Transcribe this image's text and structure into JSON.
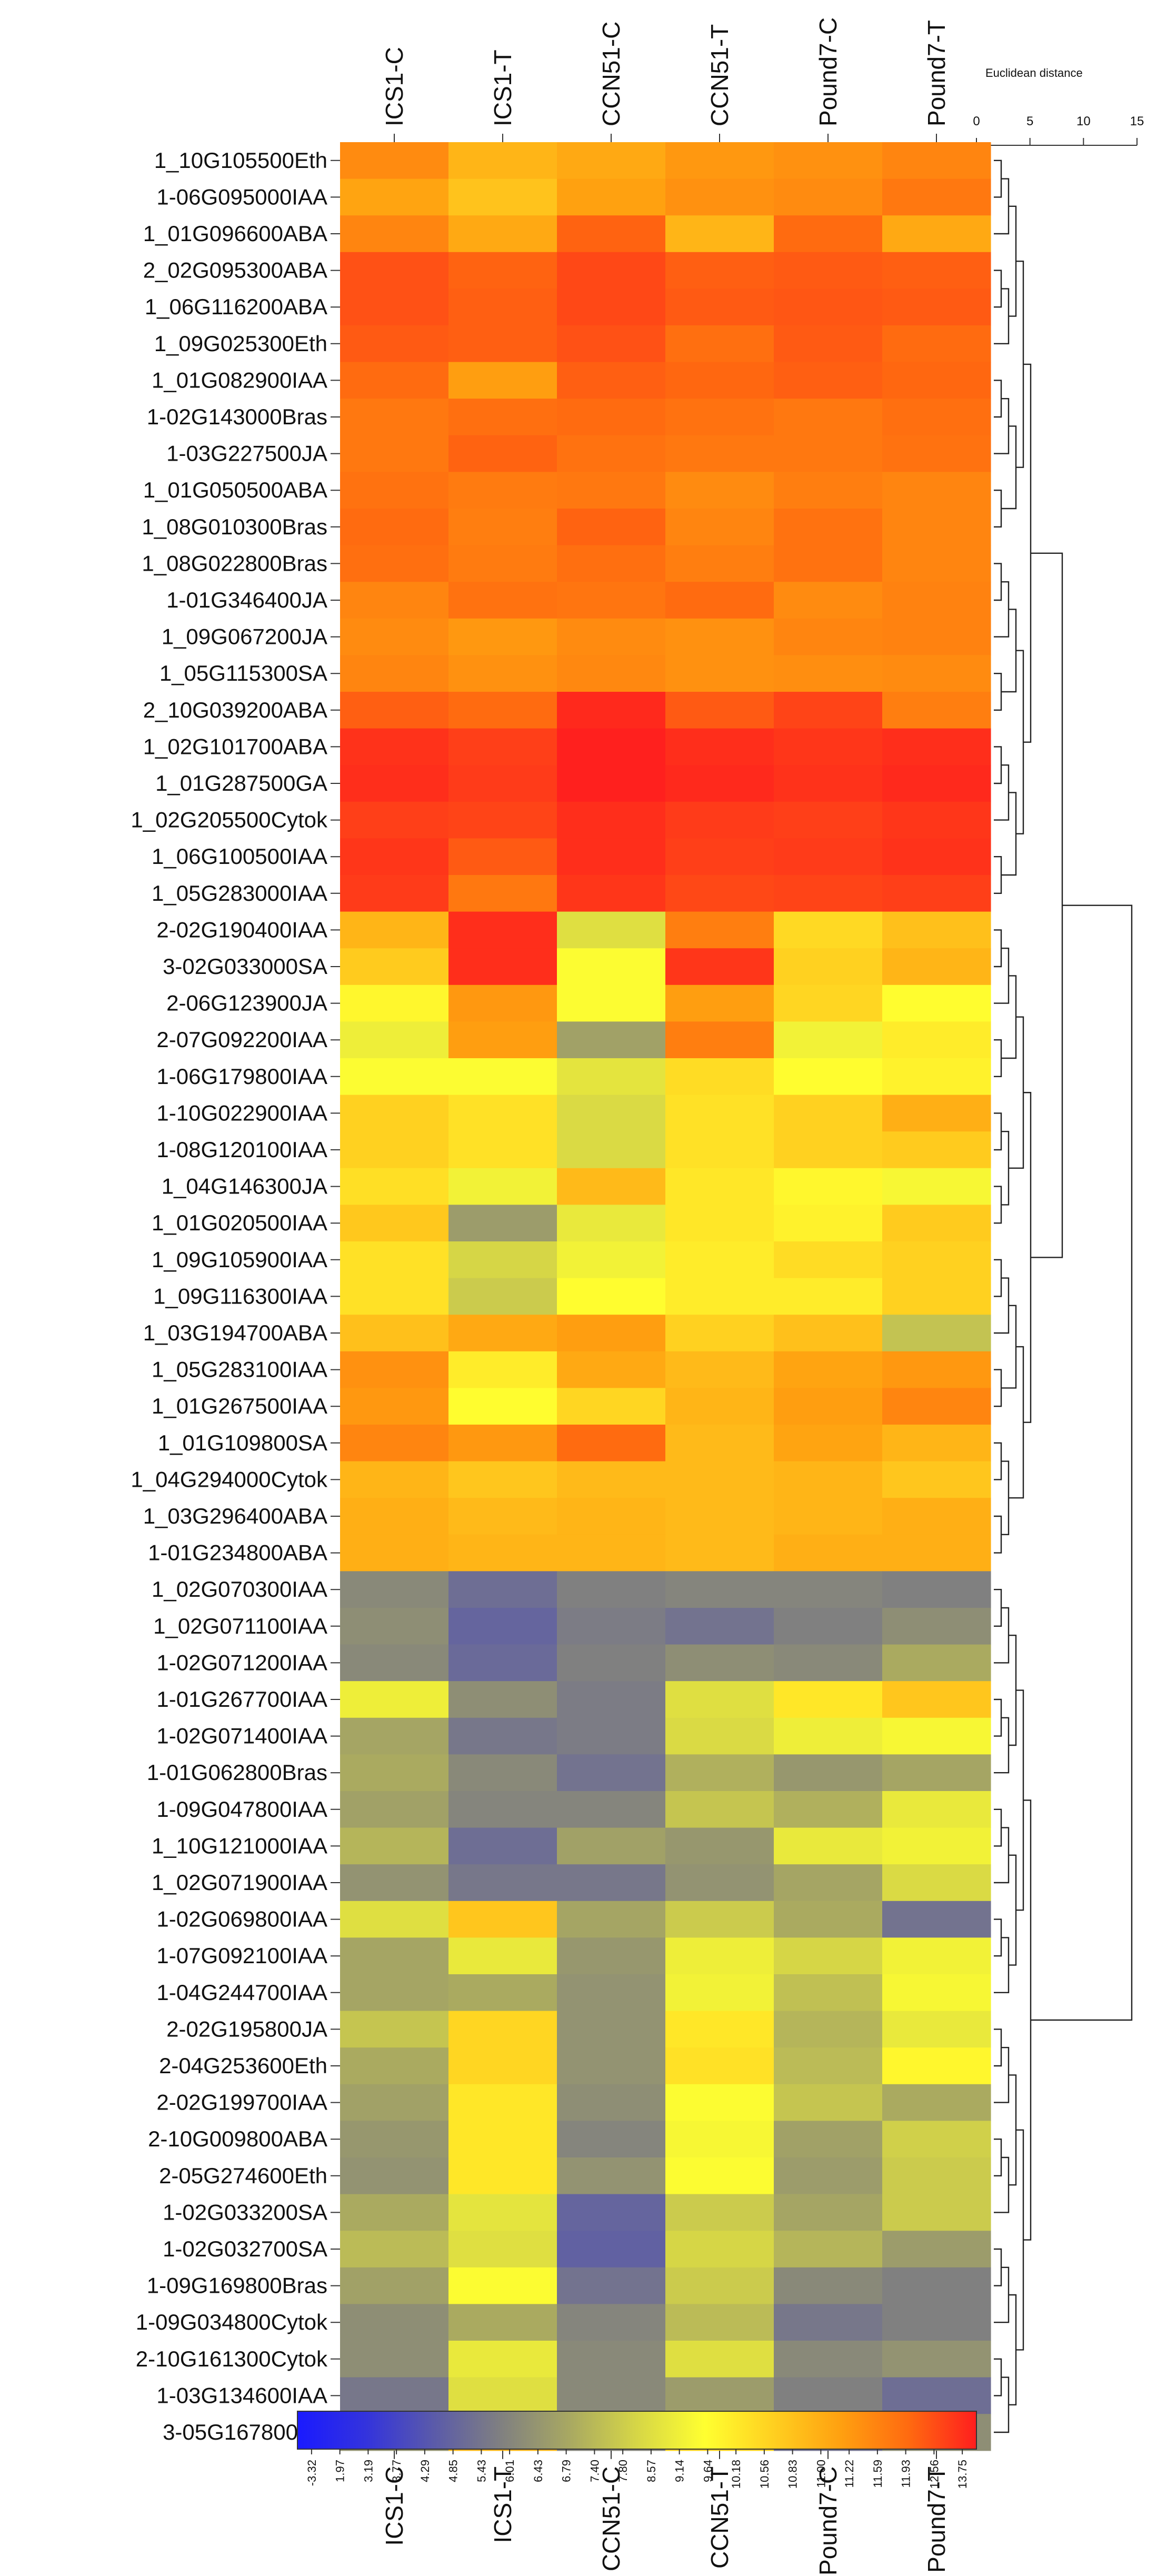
{
  "chart_data": {
    "type": "heatmap",
    "columns": [
      "ICS1-C",
      "ICS1-T",
      "CCN51-C",
      "CCN51-T",
      "Pound7-C",
      "Pound7-T"
    ],
    "rows": [
      "1_10G105500Eth",
      "1-06G095000IAA",
      "1_01G096600ABA",
      "2_02G095300ABA",
      "1_06G116200ABA",
      "1_09G025300Eth",
      "1_01G082900IAA",
      "1-02G143000Bras",
      "1-03G227500JA",
      "1_01G050500ABA",
      "1_08G010300Bras",
      "1_08G022800Bras",
      "1-01G346400JA",
      "1_09G067200JA",
      "1_05G115300SA",
      "2_10G039200ABA",
      "1_02G101700ABA",
      "1_01G287500GA",
      "1_02G205500Cytok",
      "1_06G100500IAA",
      "1_05G283000IAA",
      "2-02G190400IAA",
      "3-02G033000SA",
      "2-06G123900JA",
      "2-07G092200IAA",
      "1-06G179800IAA",
      "1-10G022900IAA",
      "1-08G120100IAA",
      "1_04G146300JA",
      "1_01G020500IAA",
      "1_09G105900IAA",
      "1_09G116300IAA",
      "1_03G194700ABA",
      "1_05G283100IAA",
      "1_01G267500IAA",
      "1_01G109800SA",
      "1_04G294000Cytok",
      "1_03G296400ABA",
      "1-01G234800ABA",
      "1_02G070300IAA",
      "1_02G071100IAA",
      "1-02G071200IAA",
      "1-01G267700IAA",
      "1-02G071400IAA",
      "1-01G062800Bras",
      "1-09G047800IAA",
      "1_10G121000IAA",
      "1_02G071900IAA",
      "1-02G069800IAA",
      "1-07G092100IAA",
      "1-04G244700IAA",
      "2-02G195800JA",
      "2-04G253600Eth",
      "2-02G199700IAA",
      "2-10G009800ABA",
      "2-05G274600Eth",
      "1-02G033200SA",
      "1-02G032700SA",
      "1-09G169800Bras",
      "1-09G034800Cytok",
      "2-10G161300Cytok",
      "1-03G134600IAA",
      "3-05G167800SA"
    ],
    "values": [
      [
        11.0,
        9.6,
        10.0,
        10.6,
        10.8,
        11.2
      ],
      [
        10.2,
        9.1,
        10.3,
        10.8,
        11.0,
        11.6
      ],
      [
        11.2,
        10.0,
        12.2,
        9.6,
        12.0,
        10.0
      ],
      [
        12.6,
        12.2,
        12.8,
        12.3,
        12.4,
        12.3
      ],
      [
        12.6,
        12.3,
        12.8,
        12.4,
        12.5,
        12.4
      ],
      [
        12.4,
        12.3,
        12.6,
        11.9,
        12.4,
        12.0
      ],
      [
        12.0,
        10.4,
        12.3,
        12.1,
        12.3,
        12.1
      ],
      [
        11.6,
        11.9,
        12.0,
        11.8,
        11.6,
        11.9
      ],
      [
        11.6,
        12.2,
        11.8,
        11.6,
        11.6,
        11.8
      ],
      [
        11.8,
        11.5,
        11.6,
        11.0,
        11.4,
        11.2
      ],
      [
        12.0,
        11.4,
        12.2,
        11.2,
        11.8,
        11.2
      ],
      [
        11.9,
        11.5,
        11.9,
        11.4,
        11.8,
        11.2
      ],
      [
        11.2,
        11.8,
        11.7,
        12.0,
        11.0,
        11.3
      ],
      [
        11.0,
        10.6,
        11.0,
        10.8,
        11.2,
        11.3
      ],
      [
        11.2,
        10.8,
        11.1,
        10.8,
        10.9,
        11.0
      ],
      [
        12.3,
        12.0,
        13.5,
        12.4,
        12.9,
        11.4
      ],
      [
        13.3,
        13.0,
        13.7,
        13.4,
        13.2,
        13.4
      ],
      [
        13.4,
        13.1,
        13.7,
        13.5,
        13.3,
        13.5
      ],
      [
        13.0,
        12.9,
        13.4,
        13.1,
        13.0,
        13.2
      ],
      [
        13.2,
        12.4,
        13.4,
        13.0,
        13.1,
        13.3
      ],
      [
        13.1,
        11.6,
        13.2,
        12.8,
        12.9,
        13.0
      ],
      [
        9.6,
        13.4,
        5.6,
        11.4,
        8.3,
        9.2
      ],
      [
        8.8,
        13.4,
        6.8,
        13.2,
        8.6,
        9.6
      ],
      [
        7.2,
        10.6,
        6.8,
        10.4,
        8.4,
        7.0
      ],
      [
        6.2,
        10.4,
        3.2,
        11.4,
        6.4,
        7.6
      ],
      [
        6.8,
        6.8,
        5.8,
        8.2,
        7.0,
        7.4
      ],
      [
        8.6,
        8.0,
        5.4,
        8.0,
        8.6,
        9.8
      ],
      [
        8.6,
        8.0,
        5.4,
        8.0,
        8.6,
        8.8
      ],
      [
        8.1,
        6.4,
        9.4,
        7.8,
        7.2,
        6.6
      ],
      [
        8.9,
        3.0,
        6.0,
        7.8,
        7.4,
        8.8
      ],
      [
        8.0,
        5.2,
        6.4,
        7.6,
        8.2,
        8.6
      ],
      [
        8.0,
        4.8,
        7.0,
        7.6,
        7.6,
        8.6
      ],
      [
        9.2,
        10.0,
        10.4,
        8.6,
        9.2,
        4.5
      ],
      [
        10.8,
        7.6,
        10.0,
        9.4,
        10.2,
        10.6
      ],
      [
        10.6,
        7.0,
        8.4,
        9.6,
        10.4,
        11.2
      ],
      [
        11.2,
        10.6,
        12.0,
        9.4,
        10.2,
        9.6
      ],
      [
        9.6,
        9.0,
        9.4,
        9.4,
        9.6,
        9.0
      ],
      [
        9.8,
        9.4,
        9.6,
        9.4,
        9.6,
        9.8
      ],
      [
        9.8,
        9.6,
        9.6,
        9.4,
        9.8,
        9.8
      ],
      [
        2.2,
        1.0,
        1.8,
        2.0,
        2.0,
        1.8
      ],
      [
        2.4,
        0.6,
        1.6,
        1.2,
        1.8,
        2.4
      ],
      [
        2.2,
        0.8,
        1.8,
        2.4,
        2.2,
        3.6
      ],
      [
        6.2,
        2.4,
        1.6,
        5.6,
        7.8,
        9.0
      ],
      [
        3.4,
        1.4,
        1.6,
        5.4,
        6.2,
        6.6
      ],
      [
        3.6,
        2.2,
        1.2,
        3.8,
        2.8,
        3.4
      ],
      [
        3.2,
        2.0,
        2.0,
        4.6,
        3.8,
        6.0
      ],
      [
        4.0,
        1.0,
        3.2,
        2.8,
        6.0,
        6.4
      ],
      [
        2.6,
        1.4,
        1.4,
        2.6,
        3.4,
        5.4
      ],
      [
        5.6,
        9.0,
        3.4,
        4.8,
        3.6,
        1.2
      ],
      [
        3.4,
        6.0,
        2.8,
        6.2,
        5.2,
        6.4
      ],
      [
        3.4,
        3.6,
        2.6,
        6.4,
        4.4,
        6.6
      ],
      [
        4.6,
        8.4,
        2.6,
        7.8,
        4.0,
        6.0
      ],
      [
        3.6,
        8.4,
        2.6,
        8.0,
        4.2,
        7.2
      ],
      [
        3.2,
        7.8,
        2.4,
        6.8,
        4.6,
        3.6
      ],
      [
        2.8,
        7.8,
        2.0,
        6.6,
        3.2,
        5.0
      ],
      [
        2.6,
        7.8,
        2.6,
        6.8,
        3.0,
        4.8
      ],
      [
        3.6,
        5.8,
        0.6,
        4.8,
        3.4,
        4.8
      ],
      [
        4.2,
        5.6,
        0.4,
        5.2,
        4.0,
        3.0
      ],
      [
        3.2,
        6.8,
        1.2,
        4.8,
        2.2,
        1.8
      ],
      [
        2.4,
        3.6,
        2.0,
        4.2,
        1.4,
        1.8
      ],
      [
        2.4,
        6.0,
        2.2,
        5.6,
        2.2,
        2.6
      ],
      [
        1.4,
        5.6,
        2.2,
        3.0,
        1.8,
        1.0
      ],
      [
        2.6,
        9.6,
        2.0,
        8.6,
        1.2,
        2.4
      ]
    ],
    "colorbar_ticks": [
      "-3.32",
      "1.97",
      "3.19",
      "3.77",
      "4.29",
      "4.85",
      "5.43",
      "6.01",
      "6.43",
      "6.79",
      "7.40",
      "7.80",
      "8.57",
      "9.14",
      "9.64",
      "10.18",
      "10.56",
      "10.83",
      "11.00",
      "11.22",
      "11.59",
      "11.93",
      "12.56",
      "13.75"
    ],
    "color_stops": [
      "#1a1aff",
      "#3333dd",
      "#5a5aaa",
      "#808080",
      "#a8a862",
      "#d6d646",
      "#ffff30",
      "#ffd020",
      "#ffa010",
      "#ff6a10",
      "#ff1e1e"
    ],
    "distance_axis": {
      "title": "Euclidean distance",
      "ticks": [
        0,
        5,
        10,
        15
      ],
      "range": [
        0,
        15
      ]
    }
  }
}
